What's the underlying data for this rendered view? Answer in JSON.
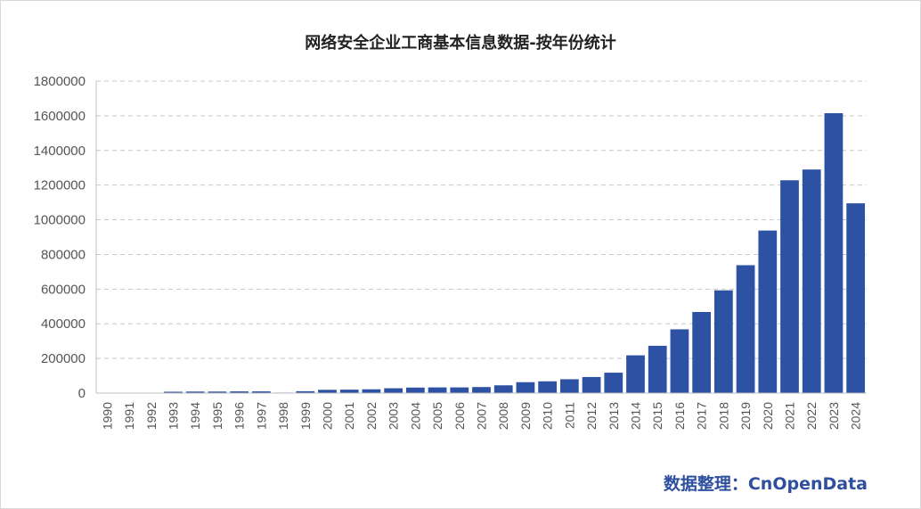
{
  "chart_data": {
    "type": "bar",
    "title": "网络安全企业工商基本信息数据-按年份统计",
    "xlabel": "",
    "ylabel": "",
    "ylim": [
      0,
      1800000
    ],
    "yticks": [
      0,
      200000,
      400000,
      600000,
      800000,
      1000000,
      1200000,
      1400000,
      1600000,
      1800000
    ],
    "grid": true,
    "color": "#2e52a3",
    "categories": [
      "1990",
      "1991",
      "1992",
      "1993",
      "1994",
      "1995",
      "1996",
      "1997",
      "1998",
      "1999",
      "2000",
      "2001",
      "2002",
      "2003",
      "2004",
      "2005",
      "2006",
      "2007",
      "2008",
      "2009",
      "2010",
      "2011",
      "2012",
      "2013",
      "2014",
      "2015",
      "2016",
      "2017",
      "2018",
      "2019",
      "2020",
      "2021",
      "2022",
      "2023",
      "2024"
    ],
    "values": [
      0,
      500,
      2000,
      8000,
      9000,
      9000,
      10000,
      10000,
      3000,
      11000,
      19000,
      20000,
      22000,
      28000,
      32000,
      33000,
      33000,
      35000,
      45000,
      63000,
      68000,
      80000,
      93000,
      118000,
      218000,
      273000,
      368000,
      468000,
      593000,
      738000,
      938000,
      1228000,
      1290000,
      1615000,
      1095000
    ]
  },
  "credit": "数据整理：CnOpenData"
}
